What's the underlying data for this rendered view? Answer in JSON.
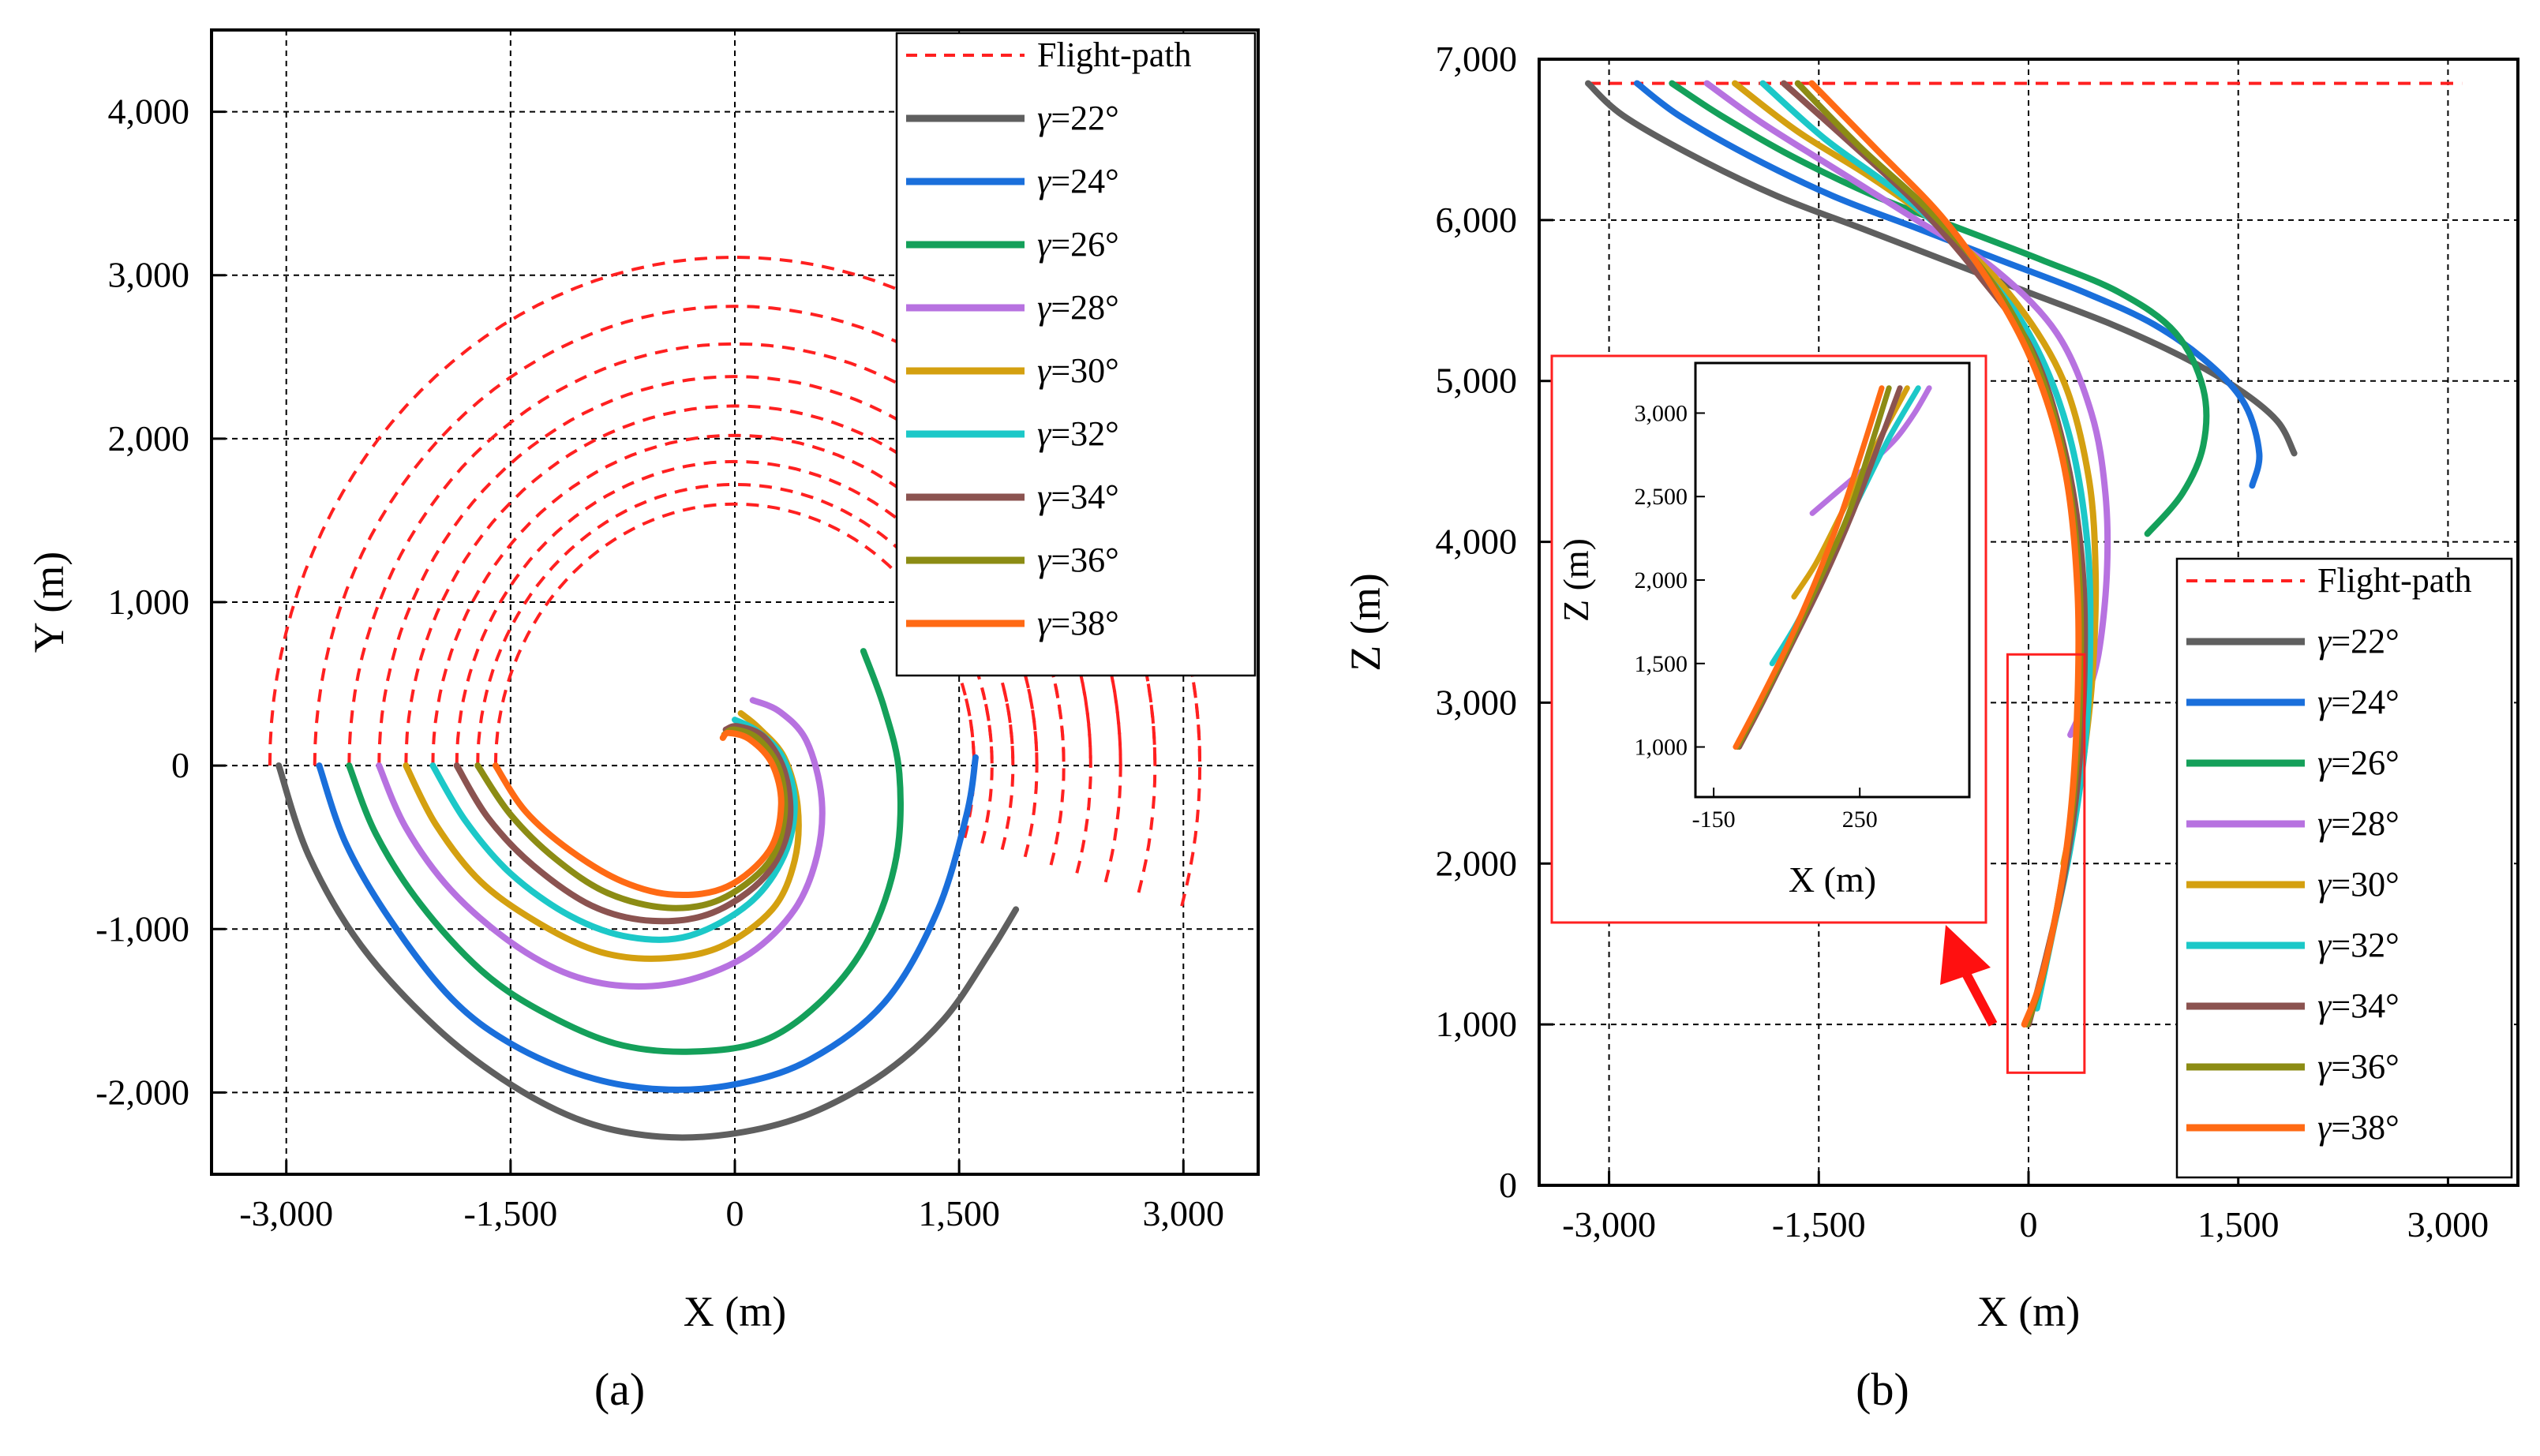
{
  "figure": {
    "panel_a_label": "(a)",
    "panel_b_label": "(b)"
  },
  "chart_data": [
    {
      "type": "line",
      "panel": "a",
      "title": "",
      "xlabel": "X (m)",
      "ylabel": "Y (m)",
      "xlim": [
        -3500,
        3500
      ],
      "ylim": [
        -2500,
        4500
      ],
      "xticks": [
        -3000,
        -1500,
        0,
        1500,
        3000
      ],
      "xtick_labels": [
        "-3,000",
        "-1,500",
        "0",
        "1,500",
        "3,000"
      ],
      "yticks": [
        -2000,
        -1000,
        0,
        1000,
        2000,
        3000,
        4000
      ],
      "ytick_labels": [
        "-2,000",
        "-1,000",
        "0",
        "1,000",
        "2,000",
        "3,000",
        "4,000"
      ],
      "grid": true,
      "legend_position": "top-right",
      "legend": [
        "Flight-path",
        "γ=22°",
        "γ=24°",
        "γ=26°",
        "γ=28°",
        "γ=30°",
        "γ=32°",
        "γ=34°",
        "γ=36°",
        "γ=38°"
      ],
      "flight_path_radii": [
        3110,
        2810,
        2580,
        2380,
        2200,
        2020,
        1860,
        1720,
        1600
      ],
      "series": [
        {
          "name": "γ=22°",
          "color": "#5f5f5f",
          "x": [
            -3050,
            -2850,
            -2500,
            -2000,
            -1500,
            -1000,
            -500,
            0,
            500,
            1000,
            1400,
            1700,
            1880
          ],
          "y": [
            0,
            -550,
            -1100,
            -1600,
            -1950,
            -2180,
            -2270,
            -2250,
            -2130,
            -1880,
            -1550,
            -1150,
            -880
          ]
        },
        {
          "name": "γ=24°",
          "color": "#1a6fdb",
          "x": [
            -2780,
            -2600,
            -2300,
            -1900,
            -1500,
            -1000,
            -500,
            0,
            500,
            1000,
            1350,
            1550,
            1610
          ],
          "y": [
            0,
            -480,
            -950,
            -1420,
            -1700,
            -1900,
            -1980,
            -1950,
            -1800,
            -1450,
            -900,
            -300,
            50
          ]
        },
        {
          "name": "γ=26°",
          "color": "#14a05a",
          "x": [
            -2580,
            -2400,
            -2100,
            -1700,
            -1300,
            -800,
            -300,
            200,
            600,
            900,
            1080,
            1100,
            1000,
            860
          ],
          "y": [
            0,
            -420,
            -850,
            -1250,
            -1500,
            -1700,
            -1750,
            -1680,
            -1420,
            -1050,
            -560,
            -50,
            350,
            700
          ]
        },
        {
          "name": "γ=28°",
          "color": "#b772e0",
          "x": [
            -2380,
            -2200,
            -1900,
            -1500,
            -1100,
            -700,
            -300,
            100,
            400,
            550,
            580,
            480,
            300,
            120
          ],
          "y": [
            0,
            -380,
            -760,
            -1080,
            -1280,
            -1350,
            -1310,
            -1150,
            -880,
            -550,
            -200,
            150,
            330,
            400
          ]
        },
        {
          "name": "γ=30°",
          "color": "#d4a010",
          "x": [
            -2200,
            -2000,
            -1700,
            -1300,
            -900,
            -500,
            -100,
            250,
            400,
            420,
            330,
            160,
            40
          ],
          "y": [
            0,
            -360,
            -710,
            -970,
            -1140,
            -1180,
            -1110,
            -880,
            -580,
            -250,
            50,
            230,
            320
          ]
        },
        {
          "name": "γ=32°",
          "color": "#1cc8c8",
          "x": [
            -2020,
            -1800,
            -1500,
            -1100,
            -700,
            -300,
            100,
            330,
            400,
            320,
            150,
            0
          ],
          "y": [
            0,
            -340,
            -660,
            -920,
            -1050,
            -1040,
            -840,
            -550,
            -230,
            50,
            210,
            280
          ]
        },
        {
          "name": "γ=34°",
          "color": "#8b5350",
          "x": [
            -1860,
            -1650,
            -1350,
            -950,
            -550,
            -150,
            200,
            360,
            340,
            200,
            20,
            -60
          ],
          "y": [
            0,
            -320,
            -610,
            -860,
            -950,
            -900,
            -680,
            -380,
            -60,
            170,
            240,
            220
          ]
        },
        {
          "name": "γ=36°",
          "color": "#8c8c14",
          "x": [
            -1720,
            -1500,
            -1200,
            -850,
            -450,
            -100,
            220,
            330,
            300,
            160,
            0,
            -70
          ],
          "y": [
            0,
            -300,
            -570,
            -780,
            -870,
            -820,
            -600,
            -320,
            -30,
            160,
            220,
            190
          ]
        },
        {
          "name": "γ=38°",
          "color": "#ff6a14",
          "x": [
            -1600,
            -1400,
            -1100,
            -750,
            -400,
            -50,
            230,
            310,
            250,
            100,
            -40,
            -80
          ],
          "y": [
            0,
            -280,
            -520,
            -710,
            -790,
            -740,
            -520,
            -240,
            10,
            160,
            200,
            170
          ]
        }
      ]
    },
    {
      "type": "line",
      "panel": "b",
      "title": "",
      "xlabel": "X (m)",
      "ylabel": "Z (m)",
      "xlim": [
        -3500,
        3500
      ],
      "ylim": [
        0,
        7000
      ],
      "xticks": [
        -3000,
        -1500,
        0,
        1500,
        3000
      ],
      "xtick_labels": [
        "-3,000",
        "-1,500",
        "0",
        "1,500",
        "3,000"
      ],
      "yticks": [
        0,
        1000,
        2000,
        3000,
        4000,
        5000,
        6000,
        7000
      ],
      "ytick_labels": [
        "0",
        "1,000",
        "2,000",
        "3,000",
        "4,000",
        "5,000",
        "6,000",
        "7,000"
      ],
      "grid": true,
      "legend_position": "bottom-right",
      "legend": [
        "Flight-path",
        "γ=22°",
        "γ=24°",
        "γ=26°",
        "γ=28°",
        "γ=30°",
        "γ=32°",
        "γ=34°",
        "γ=36°",
        "γ=38°"
      ],
      "flight_path": {
        "x": [
          -3150,
          3100
        ],
        "z": [
          6850,
          6850
        ]
      },
      "series": [
        {
          "name": "γ=22°",
          "color": "#5f5f5f",
          "x": [
            -3150,
            -2900,
            -2400,
            -1800,
            -1200,
            -600,
            0,
            600,
            1100,
            1500,
            1780,
            1900
          ],
          "z": [
            6850,
            6650,
            6400,
            6150,
            5950,
            5750,
            5550,
            5350,
            5150,
            4950,
            4750,
            4550
          ]
        },
        {
          "name": "γ=24°",
          "color": "#1a6fdb",
          "x": [
            -2800,
            -2500,
            -2000,
            -1400,
            -800,
            -200,
            400,
            900,
            1300,
            1550,
            1650,
            1600
          ],
          "z": [
            6850,
            6650,
            6400,
            6150,
            5950,
            5750,
            5550,
            5350,
            5100,
            4850,
            4550,
            4350
          ]
        },
        {
          "name": "γ=26°",
          "color": "#14a05a",
          "x": [
            -2550,
            -2200,
            -1700,
            -1100,
            -500,
            100,
            650,
            1050,
            1250,
            1250,
            1100,
            850
          ],
          "z": [
            6850,
            6650,
            6400,
            6150,
            5950,
            5750,
            5550,
            5300,
            4950,
            4600,
            4300,
            4050
          ]
        },
        {
          "name": "γ=28°",
          "color": "#b772e0",
          "x": [
            -2300,
            -1900,
            -1350,
            -800,
            -250,
            200,
            450,
            550,
            560,
            500,
            400,
            300
          ],
          "z": [
            6850,
            6600,
            6300,
            6000,
            5700,
            5300,
            4800,
            4300,
            3800,
            3300,
            3000,
            2800
          ]
        },
        {
          "name": "γ=30°",
          "color": "#d4a010",
          "x": [
            -2100,
            -1650,
            -1100,
            -550,
            -100,
            250,
            430,
            480,
            460,
            400,
            320,
            250
          ],
          "z": [
            6850,
            6550,
            6250,
            5900,
            5500,
            5000,
            4400,
            3800,
            3200,
            2700,
            2300,
            2000
          ]
        },
        {
          "name": "γ=32°",
          "color": "#1cc8c8",
          "x": [
            -1900,
            -1450,
            -900,
            -400,
            0,
            280,
            420,
            440,
            400,
            300,
            180,
            60
          ],
          "z": [
            6850,
            6500,
            6150,
            5750,
            5300,
            4700,
            4000,
            3300,
            2700,
            2100,
            1600,
            1100
          ]
        },
        {
          "name": "γ=34°",
          "color": "#8b5350",
          "x": [
            -1750,
            -1300,
            -800,
            -350,
            20,
            250,
            380,
            400,
            350,
            250,
            120,
            0
          ],
          "z": [
            6850,
            6500,
            6100,
            5650,
            5200,
            4600,
            3900,
            3200,
            2500,
            1900,
            1400,
            1000
          ]
        },
        {
          "name": "γ=36°",
          "color": "#8c8c14",
          "x": [
            -1650,
            -1200,
            -700,
            -250,
            60,
            260,
            360,
            370,
            320,
            220,
            100,
            -10
          ],
          "z": [
            6850,
            6450,
            6050,
            5600,
            5100,
            4500,
            3800,
            3100,
            2400,
            1800,
            1300,
            1000
          ]
        },
        {
          "name": "γ=38°",
          "color": "#ff6a14",
          "x": [
            -1550,
            -1100,
            -600,
            -200,
            80,
            270,
            350,
            350,
            300,
            200,
            80,
            -30
          ],
          "z": [
            6850,
            6450,
            6000,
            5500,
            5000,
            4400,
            3700,
            3000,
            2300,
            1700,
            1250,
            1000
          ]
        }
      ]
    },
    {
      "type": "line",
      "panel": "b-inset",
      "title": "",
      "xlabel": "X (m)",
      "ylabel": "Z (m)",
      "xlim": [
        -200,
        550
      ],
      "ylim": [
        700,
        3300
      ],
      "xticks": [
        -150,
        250
      ],
      "xtick_labels": [
        "-150",
        "250"
      ],
      "yticks": [
        1000,
        1500,
        2000,
        2500,
        3000
      ],
      "ytick_labels": [
        "1,000",
        "1,500",
        "2,000",
        "2,500",
        "3,000"
      ],
      "zoom_box": {
        "x": [
          -150,
          400
        ],
        "z": [
          700,
          3300
        ]
      },
      "series": [
        {
          "name": "γ=28°",
          "color": "#b772e0",
          "x": [
            120,
            200,
            280,
            350,
            400,
            440
          ],
          "z": [
            2400,
            2550,
            2700,
            2850,
            3000,
            3150
          ]
        },
        {
          "name": "γ=30°",
          "color": "#d4a010",
          "x": [
            70,
            130,
            200,
            270,
            330,
            380
          ],
          "z": [
            1900,
            2100,
            2400,
            2700,
            2950,
            3150
          ]
        },
        {
          "name": "γ=32°",
          "color": "#1cc8c8",
          "x": [
            10,
            80,
            160,
            250,
            330,
            410
          ],
          "z": [
            1500,
            1750,
            2100,
            2500,
            2850,
            3150
          ]
        },
        {
          "name": "γ=34°",
          "color": "#8b5350",
          "x": [
            -80,
            -20,
            60,
            150,
            230,
            300,
            360
          ],
          "z": [
            1000,
            1250,
            1600,
            2000,
            2400,
            2800,
            3150
          ]
        },
        {
          "name": "γ=36°",
          "color": "#8c8c14",
          "x": [
            -85,
            -25,
            55,
            140,
            220,
            280,
            330
          ],
          "z": [
            1000,
            1250,
            1600,
            2000,
            2400,
            2800,
            3150
          ]
        },
        {
          "name": "γ=38°",
          "color": "#ff6a14",
          "x": [
            -90,
            -30,
            50,
            130,
            200,
            260,
            310
          ],
          "z": [
            1000,
            1250,
            1600,
            2000,
            2400,
            2800,
            3150
          ]
        }
      ]
    }
  ]
}
